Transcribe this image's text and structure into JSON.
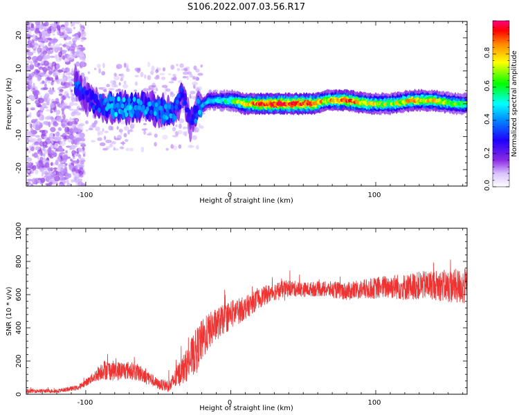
{
  "title": "S106.2022.007.03.56.R17",
  "chart_data": [
    {
      "type": "heatmap",
      "xlabel": "Height of straight line (km)",
      "ylabel": "Frequency (Hz)",
      "xlim": [
        -141,
        163
      ],
      "ylim": [
        -25,
        25
      ],
      "x_ticks": [
        "-100",
        "0",
        "100"
      ],
      "y_ticks": [
        "-20",
        "-10",
        "0",
        "10",
        "20"
      ],
      "colorbar": {
        "label": "Normalized spectral amplitude",
        "range": [
          0,
          1
        ],
        "ticks": [
          "0.0",
          "0.2",
          "0.4",
          "0.6",
          "0.8"
        ],
        "colormap": [
          "#ffffff",
          "#c9a8ff",
          "#8a2be2",
          "#1f00ff",
          "#0088ff",
          "#00ffff",
          "#00ff00",
          "#ffff00",
          "#ff8800",
          "#ff0000",
          "#ff0080"
        ]
      },
      "ridge": [
        {
          "x": -105,
          "y": 6,
          "amp": 0.35
        },
        {
          "x": -100,
          "y": 2,
          "amp": 0.3
        },
        {
          "x": -90,
          "y": 0,
          "amp": 0.35
        },
        {
          "x": -80,
          "y": -1,
          "amp": 0.45
        },
        {
          "x": -70,
          "y": -1,
          "amp": 0.45
        },
        {
          "x": -60,
          "y": -1,
          "amp": 0.4
        },
        {
          "x": -50,
          "y": -2,
          "amp": 0.4
        },
        {
          "x": -40,
          "y": -3,
          "amp": 0.4
        },
        {
          "x": -33,
          "y": 3,
          "amp": 0.3
        },
        {
          "x": -28,
          "y": -6,
          "amp": 0.3
        },
        {
          "x": -22,
          "y": -1,
          "amp": 0.4
        },
        {
          "x": -15,
          "y": 1,
          "amp": 0.45
        },
        {
          "x": -5,
          "y": 1,
          "amp": 0.5
        },
        {
          "x": 0,
          "y": 1,
          "amp": 0.55
        },
        {
          "x": 10,
          "y": 0,
          "amp": 0.75
        },
        {
          "x": 25,
          "y": 0,
          "amp": 0.9
        },
        {
          "x": 45,
          "y": 0,
          "amp": 0.9
        },
        {
          "x": 58,
          "y": 0,
          "amp": 0.9
        },
        {
          "x": 65,
          "y": 1,
          "amp": 0.7
        },
        {
          "x": 80,
          "y": 1,
          "amp": 0.85
        },
        {
          "x": 95,
          "y": 0,
          "amp": 0.7
        },
        {
          "x": 110,
          "y": 0,
          "amp": 0.65
        },
        {
          "x": 125,
          "y": 1,
          "amp": 0.75
        },
        {
          "x": 140,
          "y": 1,
          "amp": 0.7
        },
        {
          "x": 155,
          "y": 0,
          "amp": 0.6
        },
        {
          "x": 163,
          "y": 0,
          "amp": 0.55
        }
      ]
    },
    {
      "type": "line",
      "xlabel": "Height of straight line (km)",
      "ylabel": "SNR (10 * v/v)",
      "xlim": [
        -141,
        163
      ],
      "ylim": [
        0,
        1000
      ],
      "x_ticks": [
        "-100",
        "0",
        "100"
      ],
      "y_ticks": [
        "0",
        "200",
        "400",
        "600",
        "800",
        "1000"
      ],
      "series": [
        {
          "color": "#ee3333",
          "x": [
            -141,
            -120,
            -105,
            -95,
            -88,
            -80,
            -70,
            -60,
            -50,
            -42,
            -35,
            -30,
            -25,
            -20,
            -15,
            -10,
            -5,
            0,
            10,
            20,
            30,
            40,
            50,
            60,
            70,
            80,
            90,
            100,
            110,
            120,
            130,
            140,
            150,
            160,
            163
          ],
          "y": [
            20,
            20,
            40,
            100,
            150,
            140,
            145,
            120,
            60,
            50,
            130,
            180,
            250,
            320,
            380,
            420,
            450,
            480,
            520,
            580,
            620,
            640,
            630,
            635,
            630,
            620,
            630,
            640,
            650,
            645,
            655,
            660,
            650,
            650,
            650
          ],
          "noise": [
            12,
            12,
            15,
            30,
            60,
            60,
            55,
            50,
            30,
            40,
            80,
            100,
            130,
            130,
            110,
            100,
            90,
            90,
            70,
            60,
            55,
            50,
            45,
            45,
            50,
            55,
            60,
            65,
            75,
            80,
            85,
            90,
            100,
            110,
            110
          ]
        }
      ]
    }
  ]
}
